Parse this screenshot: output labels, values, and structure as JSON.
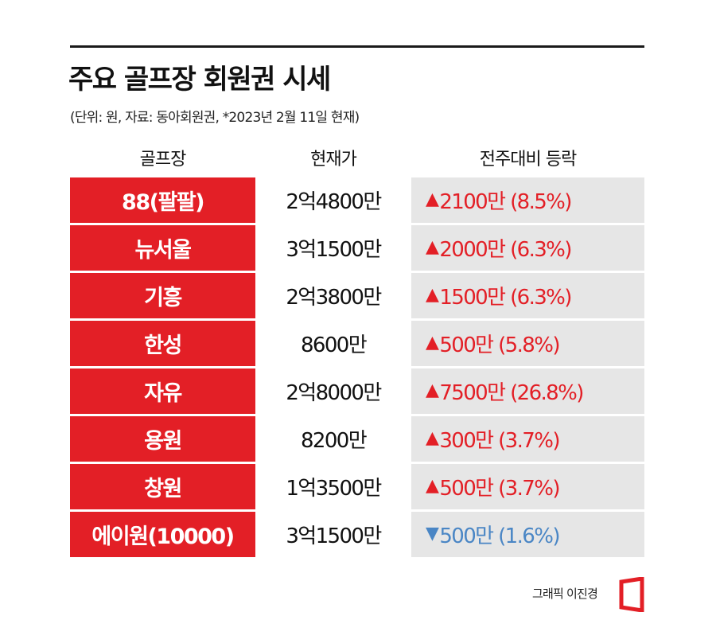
{
  "title": "주요 골프장 회원권 시세",
  "subtitle": "(단위: 원, 자료: 동아회원권, *2023년 2월 11일 현재)",
  "headers": {
    "name": "골프장",
    "price": "현재가",
    "change": "전주대비 등락"
  },
  "colors": {
    "name_bg": "#e31f26",
    "change_bg": "#e6e6e6",
    "up": "#e31f26",
    "down": "#4a86c5"
  },
  "rows": [
    {
      "name": "88(팔팔)",
      "price": "2억4800만",
      "direction": "up",
      "arrow": "▲",
      "change": "2100만 (8.5%)"
    },
    {
      "name": "뉴서울",
      "price": "3억1500만",
      "direction": "up",
      "arrow": "▲",
      "change": "2000만 (6.3%)"
    },
    {
      "name": "기흥",
      "price": "2억3800만",
      "direction": "up",
      "arrow": "▲",
      "change": "1500만 (6.3%)"
    },
    {
      "name": "한성",
      "price": "8600만",
      "direction": "up",
      "arrow": "▲",
      "change": "500만 (5.8%)"
    },
    {
      "name": "자유",
      "price": "2억8000만",
      "direction": "up",
      "arrow": "▲",
      "change": "7500만 (26.8%)"
    },
    {
      "name": "용원",
      "price": "8200만",
      "direction": "up",
      "arrow": "▲",
      "change": "300만 (3.7%)"
    },
    {
      "name": "창원",
      "price": "1억3500만",
      "direction": "up",
      "arrow": "▲",
      "change": "500만 (3.7%)"
    },
    {
      "name": "에이원(10000)",
      "price": "3억1500만",
      "direction": "down",
      "arrow": "▼",
      "change": "500만 (1.6%)"
    }
  ],
  "credit": "그래픽 이진경",
  "logo_icon": "donga-logo-icon"
}
